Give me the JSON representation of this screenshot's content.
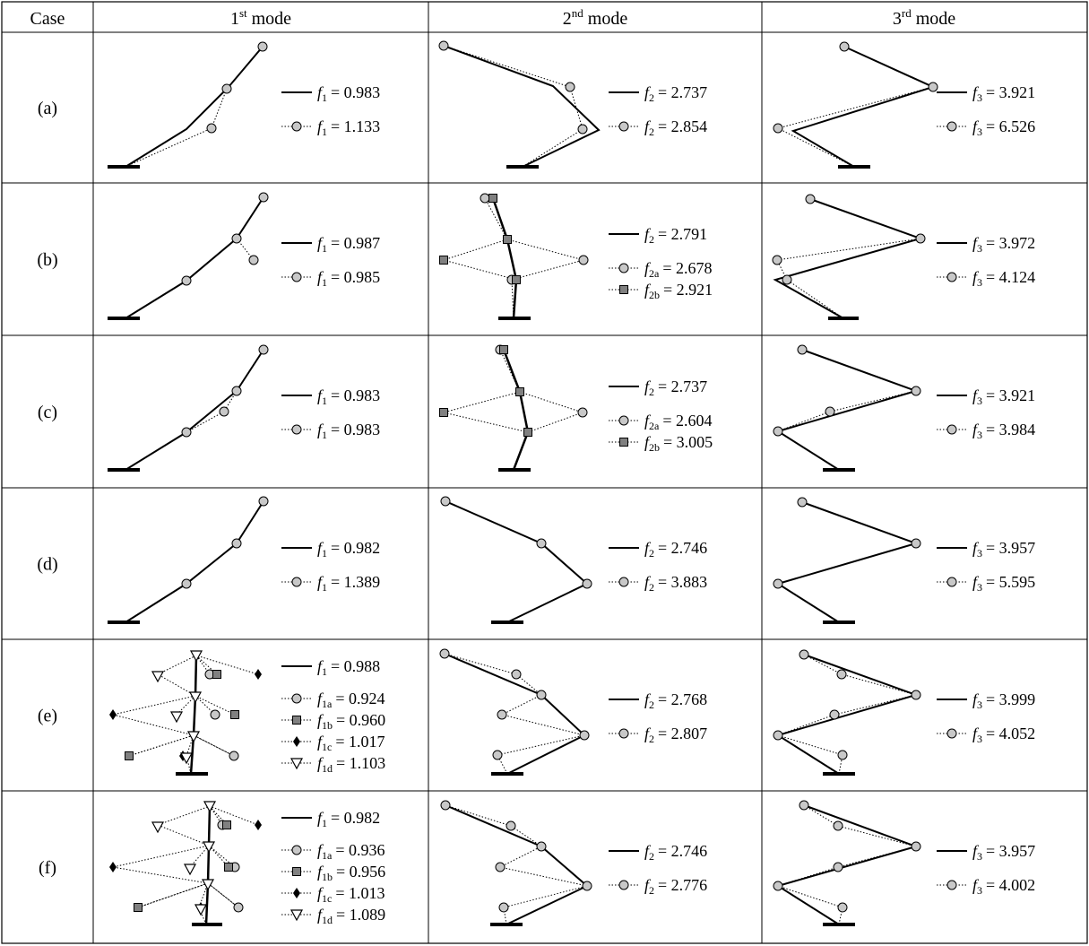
{
  "headers": {
    "case": "Case",
    "mode1": {
      "num": "1",
      "sup": "st",
      "word": "mode"
    },
    "mode2": {
      "num": "2",
      "sup": "nd",
      "word": "mode"
    },
    "mode3": {
      "num": "3",
      "sup": "rd",
      "word": "mode"
    }
  },
  "rows": [
    {
      "label": "(a)",
      "m1": [
        {
          "style": "solid",
          "sym": "f",
          "sub": "1",
          "val": "= 0.983"
        },
        {
          "style": "circle",
          "sym": "f",
          "sub": "1",
          "val": "= 1.133"
        }
      ],
      "m2": [
        {
          "style": "solid",
          "sym": "f",
          "sub": "2",
          "val": "= 2.737"
        },
        {
          "style": "circle",
          "sym": "f",
          "sub": "2",
          "val": "= 2.854"
        }
      ],
      "m3": [
        {
          "style": "solid",
          "sym": "f",
          "sub": "3",
          "val": "= 3.921"
        },
        {
          "style": "circle",
          "sym": "f",
          "sub": "3",
          "val": "= 6.526"
        }
      ]
    },
    {
      "label": "(b)",
      "m1": [
        {
          "style": "solid",
          "sym": "f",
          "sub": "1",
          "val": "= 0.987"
        },
        {
          "style": "circle",
          "sym": "f",
          "sub": "1",
          "val": "= 0.985"
        }
      ],
      "m2": [
        {
          "style": "solid",
          "sym": "f",
          "sub": "2",
          "val": "= 2.791"
        },
        {
          "style": "circle",
          "sym": "f",
          "sub": "2a",
          "val": "= 2.678"
        },
        {
          "style": "square",
          "sym": "f",
          "sub": "2b",
          "val": "= 2.921"
        }
      ],
      "m3": [
        {
          "style": "solid",
          "sym": "f",
          "sub": "3",
          "val": "= 3.972"
        },
        {
          "style": "circle",
          "sym": "f",
          "sub": "3",
          "val": "= 4.124"
        }
      ]
    },
    {
      "label": "(c)",
      "m1": [
        {
          "style": "solid",
          "sym": "f",
          "sub": "1",
          "val": "= 0.983"
        },
        {
          "style": "circle",
          "sym": "f",
          "sub": "1",
          "val": "= 0.983"
        }
      ],
      "m2": [
        {
          "style": "solid",
          "sym": "f",
          "sub": "2",
          "val": "= 2.737"
        },
        {
          "style": "circle",
          "sym": "f",
          "sub": "2a",
          "val": "= 2.604"
        },
        {
          "style": "square",
          "sym": "f",
          "sub": "2b",
          "val": "= 3.005"
        }
      ],
      "m3": [
        {
          "style": "solid",
          "sym": "f",
          "sub": "3",
          "val": "= 3.921"
        },
        {
          "style": "circle",
          "sym": "f",
          "sub": "3",
          "val": "= 3.984"
        }
      ]
    },
    {
      "label": "(d)",
      "m1": [
        {
          "style": "solid",
          "sym": "f",
          "sub": "1",
          "val": "= 0.982"
        },
        {
          "style": "circle",
          "sym": "f",
          "sub": "1",
          "val": "= 1.389"
        }
      ],
      "m2": [
        {
          "style": "solid",
          "sym": "f",
          "sub": "2",
          "val": "= 2.746"
        },
        {
          "style": "circle",
          "sym": "f",
          "sub": "2",
          "val": "= 3.883"
        }
      ],
      "m3": [
        {
          "style": "solid",
          "sym": "f",
          "sub": "3",
          "val": "= 3.957"
        },
        {
          "style": "circle",
          "sym": "f",
          "sub": "3",
          "val": "= 5.595"
        }
      ]
    },
    {
      "label": "(e)",
      "m1": [
        {
          "style": "solid",
          "sym": "f",
          "sub": "1",
          "val": "= 0.988"
        },
        {
          "style": "circle",
          "sym": "f",
          "sub": "1a",
          "val": "= 0.924"
        },
        {
          "style": "square",
          "sym": "f",
          "sub": "1b",
          "val": "= 0.960"
        },
        {
          "style": "diamond",
          "sym": "f",
          "sub": "1c",
          "val": "= 1.017"
        },
        {
          "style": "triangle",
          "sym": "f",
          "sub": "1d",
          "val": "= 1.103"
        }
      ],
      "m2": [
        {
          "style": "solid",
          "sym": "f",
          "sub": "2",
          "val": "= 2.768"
        },
        {
          "style": "circle",
          "sym": "f",
          "sub": "2",
          "val": "= 2.807"
        }
      ],
      "m3": [
        {
          "style": "solid",
          "sym": "f",
          "sub": "3",
          "val": "= 3.999"
        },
        {
          "style": "circle",
          "sym": "f",
          "sub": "3",
          "val": "= 4.052"
        }
      ]
    },
    {
      "label": "(f)",
      "m1": [
        {
          "style": "solid",
          "sym": "f",
          "sub": "1",
          "val": "= 0.982"
        },
        {
          "style": "circle",
          "sym": "f",
          "sub": "1a",
          "val": "= 0.936"
        },
        {
          "style": "square",
          "sym": "f",
          "sub": "1b",
          "val": "= 0.956"
        },
        {
          "style": "diamond",
          "sym": "f",
          "sub": "1c",
          "val": "= 1.013"
        },
        {
          "style": "triangle",
          "sym": "f",
          "sub": "1d",
          "val": "= 1.089"
        }
      ],
      "m2": [
        {
          "style": "solid",
          "sym": "f",
          "sub": "2",
          "val": "= 2.746"
        },
        {
          "style": "circle",
          "sym": "f",
          "sub": "2",
          "val": "= 2.776"
        }
      ],
      "m3": [
        {
          "style": "solid",
          "sym": "f",
          "sub": "3",
          "val": "= 3.957"
        },
        {
          "style": "circle",
          "sym": "f",
          "sub": "3",
          "val": "= 4.002"
        }
      ]
    }
  ],
  "colors": {
    "marker_fill_circle": "#c8c8c8",
    "marker_fill_square": "#808080",
    "line": "#000000"
  }
}
